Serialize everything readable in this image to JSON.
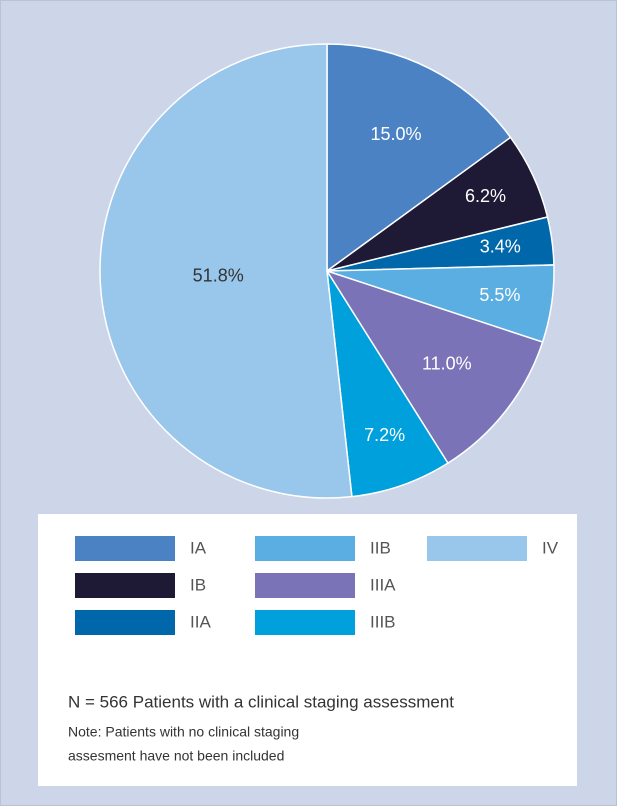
{
  "chart_data": {
    "type": "pie",
    "categories": [
      "IA",
      "IB",
      "IIA",
      "IIB",
      "IIIA",
      "IIIB",
      "IV"
    ],
    "values": [
      15.0,
      6.2,
      3.4,
      5.5,
      11.0,
      7.2,
      51.8
    ],
    "value_labels": [
      "15.0%",
      "6.2%",
      "3.4%",
      "5.5%",
      "11.0%",
      "7.2%",
      "51.8%"
    ],
    "colors": [
      "#4a82c4",
      "#1e1a35",
      "#0068aa",
      "#5aaee2",
      "#7a73b7",
      "#00a0dc",
      "#99c6eb"
    ],
    "annotations": [
      "N = 566 Patients with a clinical staging assessment",
      "Note: Patients with no clinical staging",
      "assesment have not been included"
    ]
  }
}
